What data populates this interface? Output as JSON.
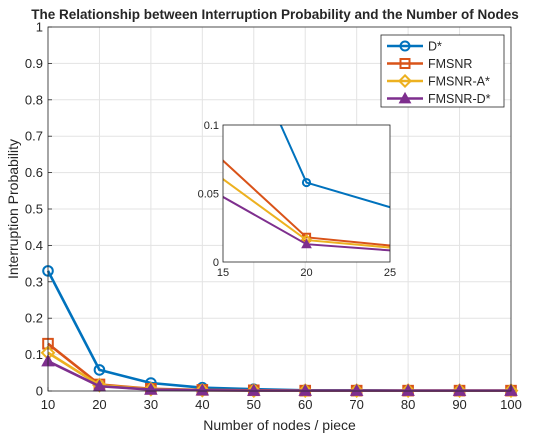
{
  "chart_data": {
    "type": "line",
    "title": "The Relationship between Interruption Probability and the Number of Nodes",
    "xlabel": "Number of nodes / piece",
    "ylabel": "Interruption Probability",
    "x": [
      10,
      20,
      30,
      40,
      50,
      60,
      70,
      80,
      90,
      100
    ],
    "xlim": [
      10,
      100
    ],
    "ylim": [
      0,
      1
    ],
    "xticks": [
      10,
      20,
      30,
      40,
      50,
      60,
      70,
      80,
      90,
      100
    ],
    "yticks": [
      0,
      0.1,
      0.2,
      0.3,
      0.4,
      0.5,
      0.6,
      0.7,
      0.8,
      0.9,
      1
    ],
    "grid": true,
    "legend_position": "top-right",
    "series": [
      {
        "name": "D*",
        "color": "#0072bd",
        "marker": "circle",
        "values": [
          0.33,
          0.058,
          0.022,
          0.009,
          0.005,
          0.002,
          0.002,
          0.001,
          0.001,
          0.001
        ]
      },
      {
        "name": "FMSNR",
        "color": "#d95319",
        "marker": "square",
        "values": [
          0.13,
          0.018,
          0.006,
          0.003,
          0.002,
          0.001,
          0.001,
          0.001,
          0.001,
          0.001
        ]
      },
      {
        "name": "FMSNR-A*",
        "color": "#edb120",
        "marker": "diamond",
        "values": [
          0.105,
          0.016,
          0.005,
          0.002,
          0.001,
          0.001,
          0.001,
          0.001,
          0.001,
          0.001
        ]
      },
      {
        "name": "FMSNR-D*",
        "color": "#7e2f8e",
        "marker": "triangle",
        "values": [
          0.082,
          0.013,
          0.004,
          0.002,
          0.001,
          0.001,
          0.001,
          0.001,
          0.001,
          0.001
        ]
      }
    ],
    "inset": {
      "xlim": [
        15,
        25
      ],
      "ylim": [
        0,
        0.1
      ],
      "xticks": [
        15,
        20,
        25
      ],
      "yticks": [
        0,
        0.05,
        0.1
      ]
    }
  }
}
